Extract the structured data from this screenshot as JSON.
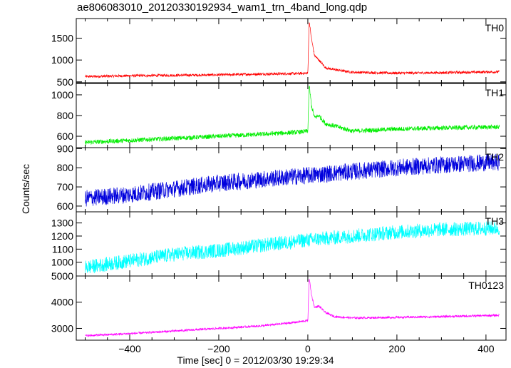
{
  "title": "ae806083010_20120330192934_wam1_trn_4band_long.qdp",
  "ylabel": "Counts/sec",
  "xlabel": "Time [sec] 0 = 2012/03/30 19:29:34",
  "chart_data": {
    "type": "line",
    "title": "ae806083010_20120330192934_wam1_trn_4band_long.qdp",
    "xlabel": "Time [sec] 0 = 2012/03/30 19:29:34",
    "ylabel": "Counts/sec",
    "xlim": [
      -520,
      445
    ],
    "x_ticks": [
      -400,
      -200,
      0,
      200,
      400
    ],
    "x_tick_labels": [
      "−400",
      "−200",
      "0",
      "200",
      "400"
    ],
    "grid": false,
    "legend": "none",
    "panels": [
      {
        "name": "TH0",
        "color": "#ff0000",
        "ylim": [
          480,
          1950
        ],
        "y_ticks": [
          500,
          1000,
          1500
        ],
        "y_tick_labels": [
          "500",
          "1000",
          "1500"
        ],
        "x": [
          -500,
          -400,
          -300,
          -200,
          -100,
          -20,
          0,
          3,
          8,
          15,
          25,
          40,
          60,
          100,
          200,
          300,
          430
        ],
        "y": [
          620,
          640,
          650,
          660,
          680,
          690,
          700,
          1900,
          1500,
          1100,
          1000,
          820,
          780,
          720,
          700,
          710,
          730
        ]
      },
      {
        "name": "TH1",
        "color": "#00ee00",
        "ylim": [
          490,
          1110
        ],
        "y_ticks": [
          600,
          800,
          1000
        ],
        "y_tick_labels": [
          "600",
          "800",
          "1000"
        ],
        "x": [
          -500,
          -400,
          -300,
          -200,
          -100,
          -20,
          0,
          3,
          8,
          15,
          25,
          40,
          60,
          100,
          200,
          300,
          430
        ],
        "y": [
          540,
          560,
          580,
          600,
          620,
          640,
          650,
          1100,
          900,
          780,
          800,
          720,
          700,
          650,
          670,
          680,
          690
        ]
      },
      {
        "name": "TH2",
        "color": "#0000dd",
        "ylim": [
          570,
          905
        ],
        "y_ticks": [
          600,
          700,
          800,
          900
        ],
        "y_tick_labels": [
          "600",
          "700",
          "800",
          "900"
        ],
        "x": [
          -500,
          -400,
          -300,
          -200,
          -100,
          0,
          100,
          200,
          300,
          430
        ],
        "y": [
          640,
          660,
          690,
          720,
          740,
          760,
          780,
          800,
          815,
          830
        ]
      },
      {
        "name": "TH3",
        "color": "#00ffff",
        "ylim": [
          895,
          1385
        ],
        "y_ticks": [
          1000,
          1100,
          1200,
          1300
        ],
        "y_tick_labels": [
          "1000",
          "1100",
          "1200",
          "1300"
        ],
        "x": [
          -500,
          -400,
          -300,
          -200,
          -100,
          0,
          100,
          200,
          300,
          430
        ],
        "y": [
          960,
          1010,
          1060,
          1090,
          1130,
          1170,
          1200,
          1230,
          1250,
          1260
        ]
      },
      {
        "name": "TH0123",
        "color": "#ff00ff",
        "ylim": [
          2550,
          5000
        ],
        "y_ticks": [
          3000,
          4000,
          5000
        ],
        "y_tick_labels": [
          "3000",
          "4000",
          "5000"
        ],
        "x": [
          -500,
          -400,
          -300,
          -200,
          -100,
          -20,
          0,
          3,
          8,
          15,
          25,
          40,
          60,
          100,
          200,
          300,
          430
        ],
        "y": [
          2720,
          2800,
          2900,
          3000,
          3100,
          3250,
          3300,
          4950,
          4300,
          3800,
          3850,
          3600,
          3450,
          3400,
          3420,
          3450,
          3500
        ]
      }
    ]
  }
}
